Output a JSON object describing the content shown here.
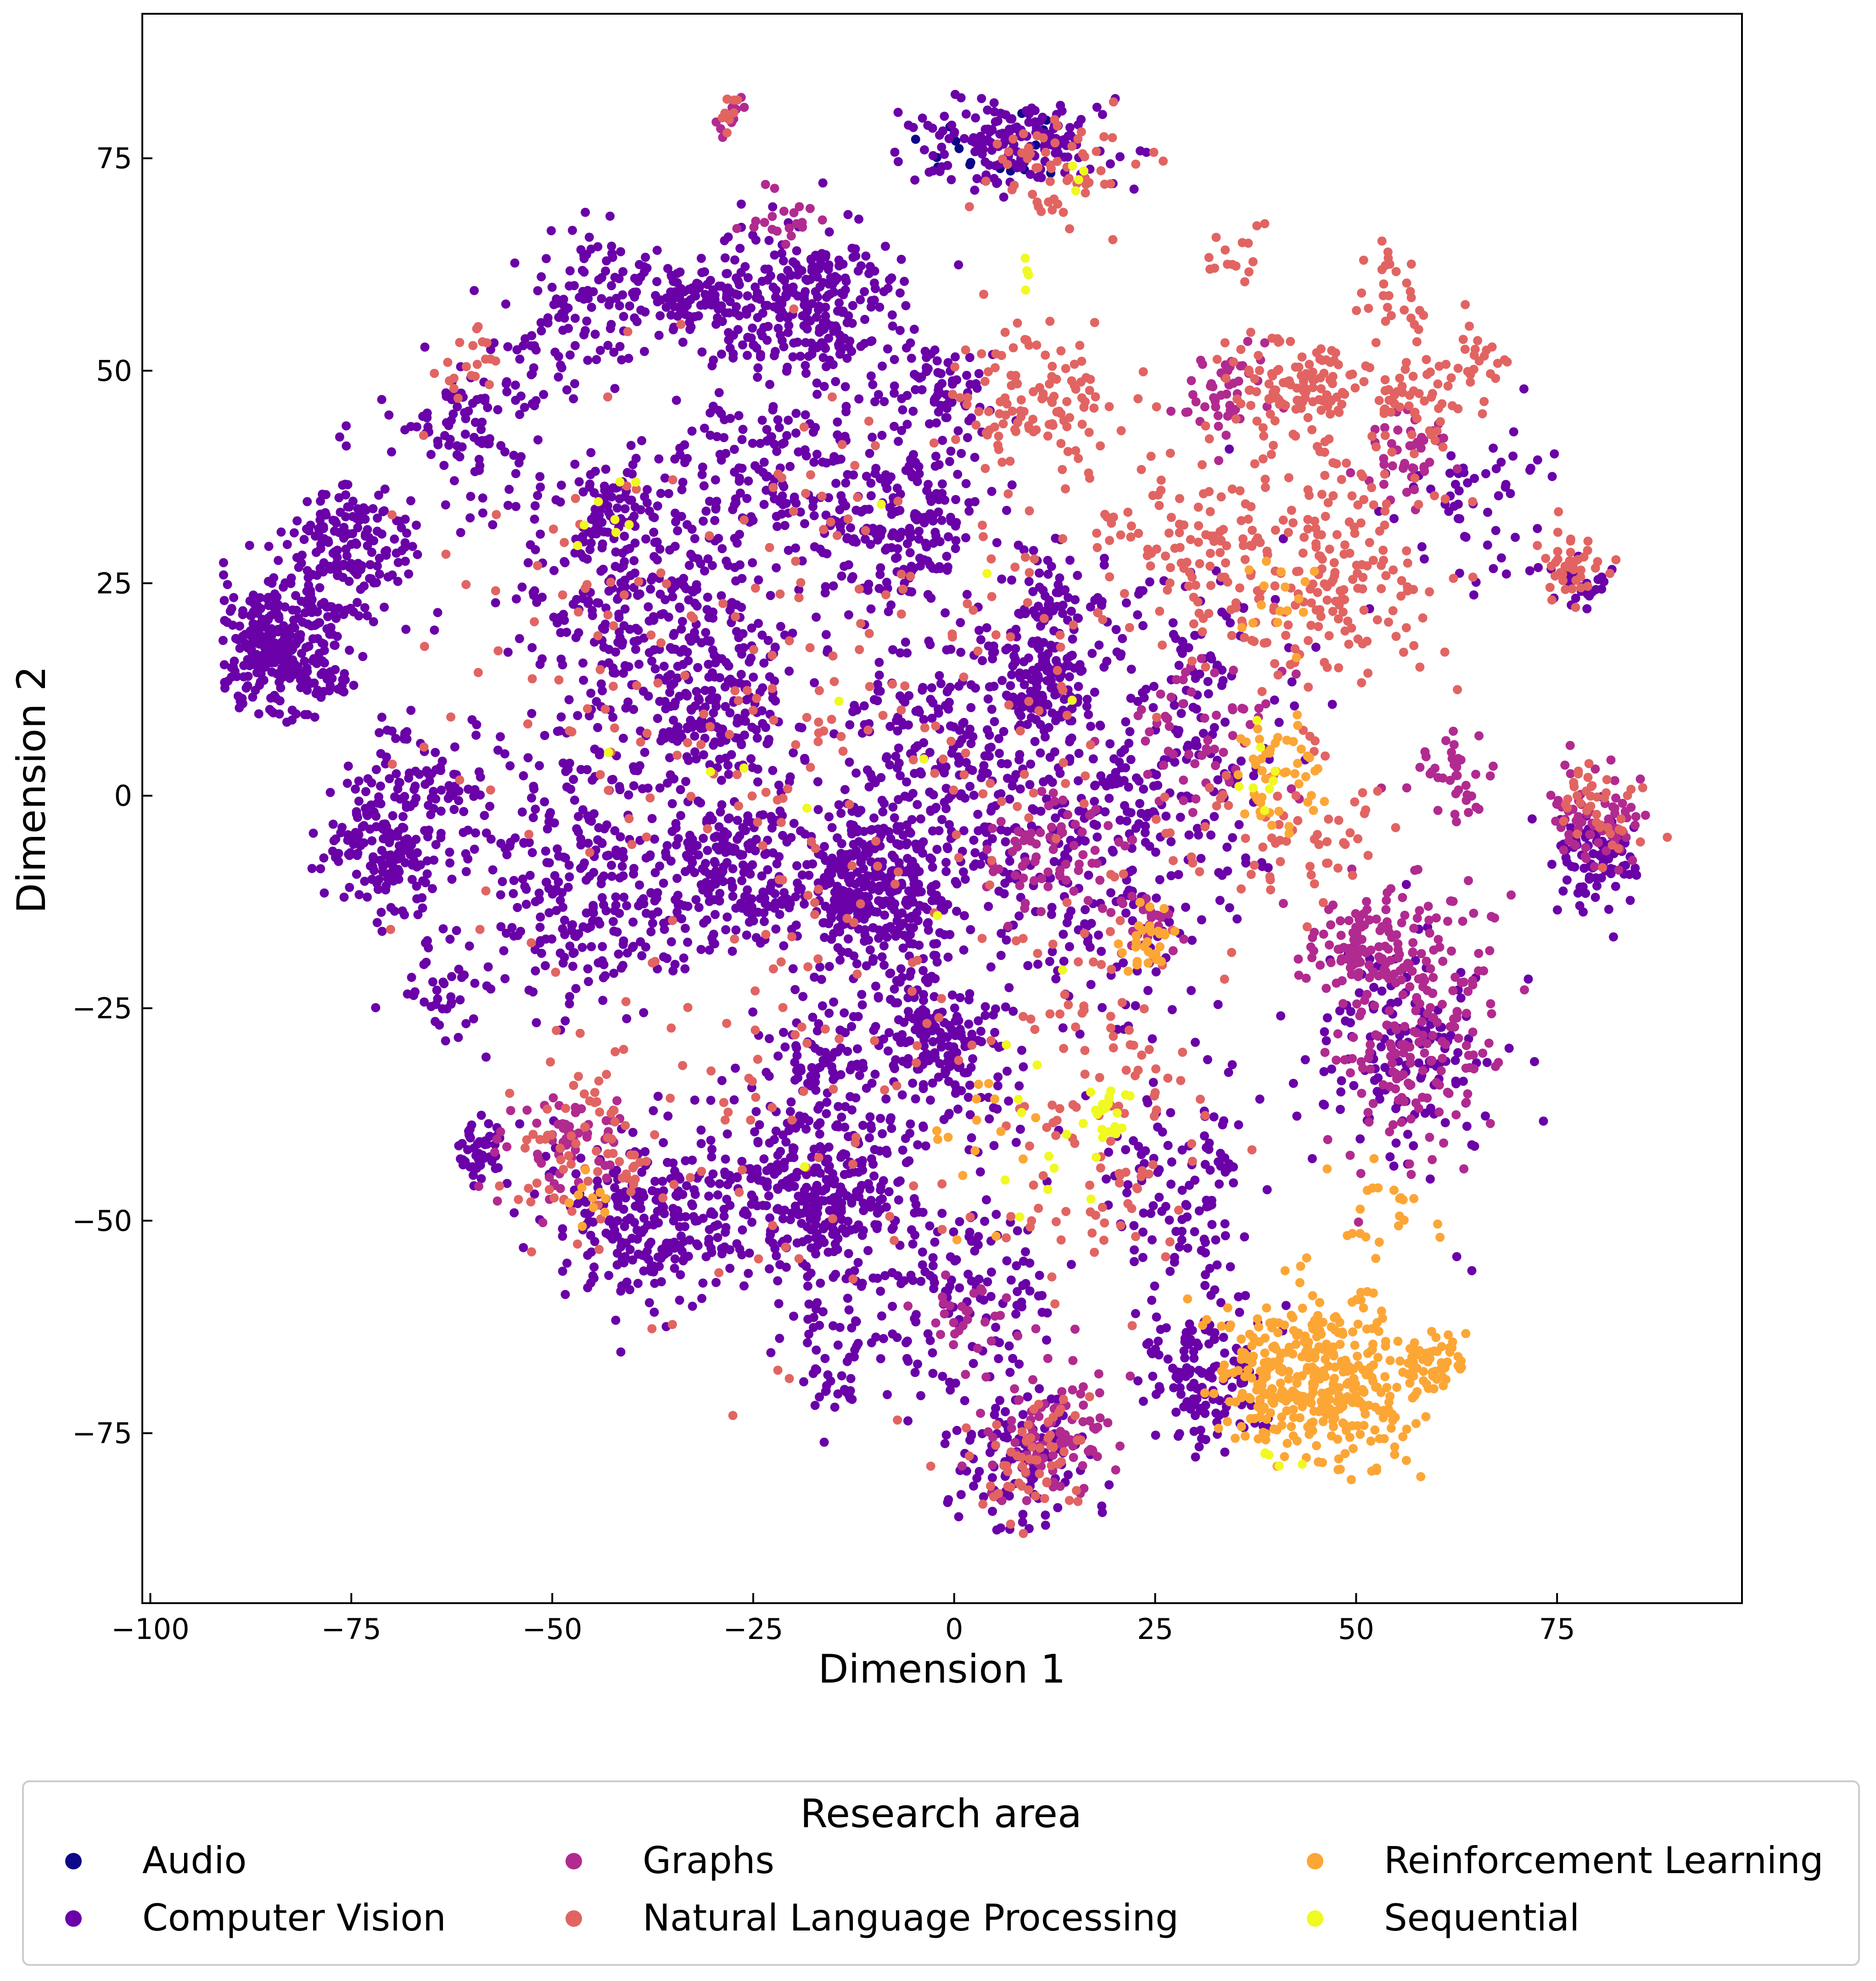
{
  "chart_data": {
    "type": "scatter",
    "title": "",
    "xlabel": "Dimension 1",
    "ylabel": "Dimension 2",
    "xlim": [
      -101,
      98
    ],
    "ylim": [
      -95,
      92
    ],
    "xticks": [
      -100,
      -75,
      -50,
      -25,
      0,
      25,
      50,
      75
    ],
    "yticks": [
      -75,
      -50,
      -25,
      0,
      25,
      50,
      75
    ],
    "xtick_labels": [
      "−100",
      "−75",
      "−50",
      "−25",
      "0",
      "25",
      "50",
      "75"
    ],
    "ytick_labels": [
      "−75",
      "−50",
      "−25",
      "0",
      "25",
      "50",
      "75"
    ],
    "grid": false,
    "legend": {
      "title": "Research area",
      "position": "bottom",
      "columns": 3
    },
    "series": [
      {
        "name": "Audio",
        "color": "#0d0887",
        "clusters": [
          {
            "x": 6,
            "y": 76,
            "sx": 5,
            "sy": 3,
            "n": 20
          }
        ]
      },
      {
        "name": "Computer Vision",
        "color": "#6a00a8",
        "clusters": [
          {
            "x": -84,
            "y": 17,
            "sx": 4,
            "sy": 4,
            "n": 320
          },
          {
            "x": -75,
            "y": 29,
            "sx": 4,
            "sy": 4,
            "n": 170
          },
          {
            "x": -71,
            "y": -6,
            "sx": 4,
            "sy": 4,
            "n": 170
          },
          {
            "x": -66,
            "y": 1,
            "sx": 4,
            "sy": 4,
            "n": 80
          },
          {
            "x": -59,
            "y": -42,
            "sx": 2,
            "sy": 2,
            "n": 50
          },
          {
            "x": -18,
            "y": 58,
            "sx": 6,
            "sy": 5,
            "n": 310
          },
          {
            "x": -33,
            "y": 59,
            "sx": 3,
            "sy": 2,
            "n": 80
          },
          {
            "x": -43,
            "y": 60,
            "sx": 3,
            "sy": 4,
            "n": 60
          },
          {
            "x": -10,
            "y": -11,
            "sx": 5,
            "sy": 5,
            "n": 360
          },
          {
            "x": -2,
            "y": -29,
            "sx": 5,
            "sy": 5,
            "n": 220
          },
          {
            "x": -17,
            "y": -47,
            "sx": 6,
            "sy": 5,
            "n": 330
          },
          {
            "x": -37,
            "y": -50,
            "sx": 7,
            "sy": 5,
            "n": 260
          },
          {
            "x": -28,
            "y": -9,
            "sx": 5,
            "sy": 4,
            "n": 200
          },
          {
            "x": -7,
            "y": 33,
            "sx": 5,
            "sy": 6,
            "n": 220
          },
          {
            "x": 7,
            "y": 77,
            "sx": 6,
            "sy": 3,
            "n": 180
          },
          {
            "x": 11,
            "y": 13,
            "sx": 3,
            "sy": 3,
            "n": 110
          },
          {
            "x": 8,
            "y": -79,
            "sx": 4,
            "sy": 5,
            "n": 120
          },
          {
            "x": 32,
            "y": -68,
            "sx": 4,
            "sy": 5,
            "n": 140
          },
          {
            "x": -40,
            "y": 23,
            "sx": 8,
            "sy": 8,
            "n": 280
          },
          {
            "x": -45,
            "y": -10,
            "sx": 7,
            "sy": 8,
            "n": 280
          },
          {
            "x": -60,
            "y": 43,
            "sx": 5,
            "sy": 5,
            "n": 100
          },
          {
            "x": -63,
            "y": -23,
            "sx": 3,
            "sy": 3,
            "n": 40
          },
          {
            "x": -30,
            "y": 10,
            "sx": 5,
            "sy": 6,
            "n": 200
          },
          {
            "x": 0,
            "y": 4,
            "sx": 9,
            "sy": 9,
            "n": 320
          },
          {
            "x": -26,
            "y": 37,
            "sx": 6,
            "sy": 5,
            "n": 150
          },
          {
            "x": 1,
            "y": -58,
            "sx": 6,
            "sy": 6,
            "n": 120
          },
          {
            "x": 28,
            "y": -45,
            "sx": 5,
            "sy": 6,
            "n": 110
          },
          {
            "x": 56,
            "y": -30,
            "sx": 6,
            "sy": 7,
            "n": 160
          },
          {
            "x": 80,
            "y": -7,
            "sx": 3,
            "sy": 3,
            "n": 90
          },
          {
            "x": 20,
            "y": -8,
            "sx": 8,
            "sy": 10,
            "n": 220
          },
          {
            "x": 28,
            "y": 12,
            "sx": 7,
            "sy": 8,
            "n": 140
          },
          {
            "x": -17,
            "y": -32,
            "sx": 4,
            "sy": 4,
            "n": 90
          },
          {
            "x": -43,
            "y": 33,
            "sx": 3,
            "sy": 3,
            "n": 60
          },
          {
            "x": -1,
            "y": 48,
            "sx": 3,
            "sy": 3,
            "n": 60
          },
          {
            "x": 12,
            "y": 22,
            "sx": 4,
            "sy": 4,
            "n": 70
          },
          {
            "x": 78,
            "y": 25,
            "sx": 2,
            "sy": 2,
            "n": 25
          },
          {
            "x": 65,
            "y": 35,
            "sx": 5,
            "sy": 5,
            "n": 60
          },
          {
            "x": -14,
            "y": -66,
            "sx": 4,
            "sy": 4,
            "n": 60
          },
          {
            "x": -50,
            "y": 55,
            "sx": 4,
            "sy": 5,
            "n": 60
          }
        ]
      },
      {
        "name": "Graphs",
        "color": "#b12a90",
        "clusters": [
          {
            "x": 50,
            "y": -18,
            "sx": 5,
            "sy": 3,
            "n": 110
          },
          {
            "x": 56,
            "y": -30,
            "sx": 5,
            "sy": 6,
            "n": 140
          },
          {
            "x": 80,
            "y": -3,
            "sx": 3,
            "sy": 3,
            "n": 70
          },
          {
            "x": 12,
            "y": -75,
            "sx": 4,
            "sy": 4,
            "n": 90
          },
          {
            "x": 11,
            "y": -7,
            "sx": 4,
            "sy": 3,
            "n": 70
          },
          {
            "x": 62,
            "y": 3,
            "sx": 3,
            "sy": 3,
            "n": 40
          },
          {
            "x": 34,
            "y": 47,
            "sx": 3,
            "sy": 3,
            "n": 50
          },
          {
            "x": 31,
            "y": 7,
            "sx": 5,
            "sy": 5,
            "n": 60
          },
          {
            "x": -48,
            "y": -41,
            "sx": 4,
            "sy": 3,
            "n": 60
          },
          {
            "x": 24,
            "y": -15,
            "sx": 2,
            "sy": 2,
            "n": 30
          },
          {
            "x": 57,
            "y": 40,
            "sx": 3,
            "sy": 3,
            "n": 40
          },
          {
            "x": 60,
            "y": -18,
            "sx": 4,
            "sy": 4,
            "n": 40
          },
          {
            "x": 2,
            "y": -62,
            "sx": 3,
            "sy": 3,
            "n": 30
          },
          {
            "x": -28,
            "y": 80,
            "sx": 1,
            "sy": 1,
            "n": 12
          },
          {
            "x": -21,
            "y": 68,
            "sx": 2,
            "sy": 2,
            "n": 20
          }
        ]
      },
      {
        "name": "Natural Language Processing",
        "color": "#e16462",
        "clusters": [
          {
            "x": 43,
            "y": 48,
            "sx": 4,
            "sy": 3,
            "n": 110
          },
          {
            "x": 45,
            "y": 27,
            "sx": 7,
            "sy": 7,
            "n": 200
          },
          {
            "x": 10,
            "y": 47,
            "sx": 5,
            "sy": 4,
            "n": 110
          },
          {
            "x": 77,
            "y": 27,
            "sx": 2,
            "sy": 2,
            "n": 40
          },
          {
            "x": 13,
            "y": 74,
            "sx": 5,
            "sy": 3,
            "n": 60
          },
          {
            "x": 57,
            "y": 47,
            "sx": 4,
            "sy": 4,
            "n": 60
          },
          {
            "x": 80,
            "y": -2,
            "sx": 3,
            "sy": 3,
            "n": 40
          },
          {
            "x": 18,
            "y": -35,
            "sx": 7,
            "sy": 10,
            "n": 110
          },
          {
            "x": -45,
            "y": -42,
            "sx": 5,
            "sy": 5,
            "n": 70
          },
          {
            "x": 10,
            "y": -78,
            "sx": 4,
            "sy": 4,
            "n": 60
          },
          {
            "x": 30,
            "y": 30,
            "sx": 6,
            "sy": 6,
            "n": 100
          },
          {
            "x": -5,
            "y": 10,
            "sx": 20,
            "sy": 20,
            "n": 200
          },
          {
            "x": 40,
            "y": -5,
            "sx": 6,
            "sy": 5,
            "n": 60
          },
          {
            "x": -28,
            "y": 80,
            "sx": 1,
            "sy": 1,
            "n": 10
          },
          {
            "x": -60,
            "y": 50,
            "sx": 3,
            "sy": 3,
            "n": 20
          },
          {
            "x": 65,
            "y": 52,
            "sx": 2,
            "sy": 2,
            "n": 20
          },
          {
            "x": -40,
            "y": 15,
            "sx": 15,
            "sy": 15,
            "n": 80
          },
          {
            "x": -20,
            "y": -40,
            "sx": 15,
            "sy": 15,
            "n": 80
          },
          {
            "x": 55,
            "y": 60,
            "sx": 3,
            "sy": 3,
            "n": 25
          },
          {
            "x": 35,
            "y": 64,
            "sx": 2,
            "sy": 2,
            "n": 15
          }
        ]
      },
      {
        "name": "Reinforcement Learning",
        "color": "#fca636",
        "clusters": [
          {
            "x": 46,
            "y": -69,
            "sx": 6,
            "sy": 5,
            "n": 360
          },
          {
            "x": 59,
            "y": -66,
            "sx": 2,
            "sy": 2,
            "n": 50
          },
          {
            "x": 38,
            "y": -67,
            "sx": 2,
            "sy": 2,
            "n": 40
          },
          {
            "x": 40,
            "y": 3,
            "sx": 3,
            "sy": 4,
            "n": 50
          },
          {
            "x": 24,
            "y": -17,
            "sx": 2,
            "sy": 2,
            "n": 30
          },
          {
            "x": 53,
            "y": -48,
            "sx": 3,
            "sy": 3,
            "n": 20
          },
          {
            "x": 40,
            "y": 23,
            "sx": 3,
            "sy": 3,
            "n": 15
          },
          {
            "x": 2,
            "y": -40,
            "sx": 5,
            "sy": 5,
            "n": 15
          },
          {
            "x": -47,
            "y": -47,
            "sx": 2,
            "sy": 2,
            "n": 10
          }
        ]
      },
      {
        "name": "Sequential",
        "color": "#f0f921",
        "clusters": [
          {
            "x": 19,
            "y": -37,
            "sx": 1.5,
            "sy": 2,
            "n": 20
          },
          {
            "x": 10,
            "y": -40,
            "sx": 4,
            "sy": 5,
            "n": 12
          },
          {
            "x": -42,
            "y": 34,
            "sx": 2,
            "sy": 2,
            "n": 8
          },
          {
            "x": 39,
            "y": 2,
            "sx": 2,
            "sy": 3,
            "n": 8
          },
          {
            "x": 9,
            "y": 62,
            "sx": 2,
            "sy": 2,
            "n": 4
          },
          {
            "x": 15,
            "y": 72,
            "sx": 2,
            "sy": 2,
            "n": 4
          },
          {
            "x": 40,
            "y": -78,
            "sx": 2,
            "sy": 1,
            "n": 5
          },
          {
            "x": -10,
            "y": 0,
            "sx": 20,
            "sy": 20,
            "n": 12
          }
        ]
      }
    ]
  }
}
